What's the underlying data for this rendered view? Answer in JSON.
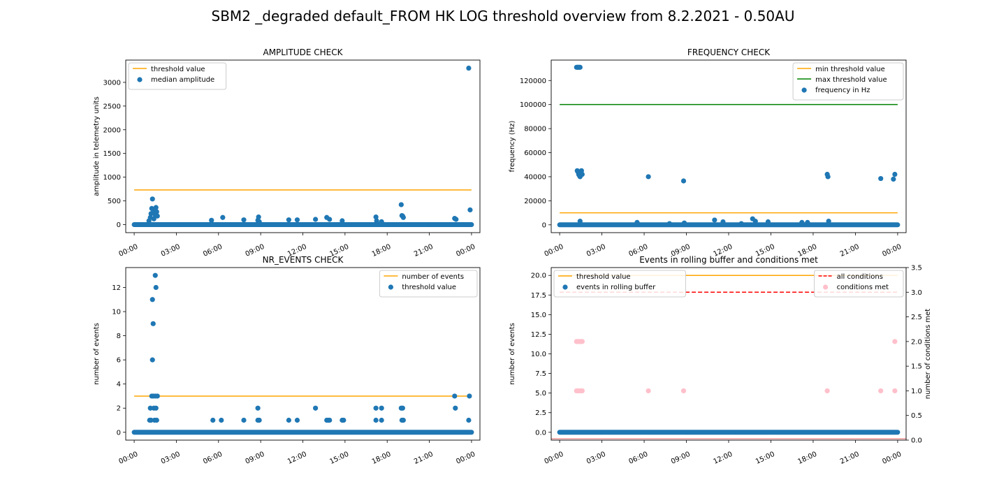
{
  "figure": {
    "title": "SBM2 _degraded default_FROM HK LOG threshold overview from 8.2.2021 - 0.50AU"
  },
  "colors": {
    "blue": "#1f77b4",
    "orange": "#ffa500",
    "green": "#008000",
    "red": "#ff0000",
    "pink": "#ffc0cb"
  },
  "chart_data": [
    {
      "type": "scatter",
      "title": "AMPLITUDE CHECK",
      "xlabel": "",
      "ylabel": "amplitude in telemetry units",
      "xlim": [
        -0.6,
        24.6
      ],
      "ylim": [
        -170,
        3470
      ],
      "xticks": [
        "00:00",
        "03:00",
        "06:00",
        "09:00",
        "12:00",
        "15:00",
        "18:00",
        "21:00",
        "00:00"
      ],
      "yticks": [
        0,
        500,
        1000,
        1500,
        2000,
        2500,
        3000
      ],
      "legend": {
        "position": "upper left",
        "entries": [
          "threshold value",
          "median amplitude"
        ]
      },
      "lines": [
        {
          "name": "threshold value",
          "color": "orange",
          "x": [
            0,
            24
          ],
          "y": [
            730,
            730
          ]
        }
      ],
      "scatter": {
        "name": "median amplitude",
        "color": "blue",
        "baseline": 0,
        "points": [
          [
            1.05,
            80
          ],
          [
            1.15,
            150
          ],
          [
            1.2,
            230
          ],
          [
            1.25,
            340
          ],
          [
            1.3,
            540
          ],
          [
            1.35,
            260
          ],
          [
            1.4,
            120
          ],
          [
            1.45,
            300
          ],
          [
            1.5,
            200
          ],
          [
            1.55,
            360
          ],
          [
            1.6,
            270
          ],
          [
            1.65,
            180
          ],
          [
            5.5,
            90
          ],
          [
            6.3,
            150
          ],
          [
            7.8,
            100
          ],
          [
            8.8,
            90
          ],
          [
            8.85,
            160
          ],
          [
            8.9,
            60
          ],
          [
            11.0,
            100
          ],
          [
            11.6,
            100
          ],
          [
            12.9,
            110
          ],
          [
            13.7,
            150
          ],
          [
            13.9,
            110
          ],
          [
            14.8,
            80
          ],
          [
            17.2,
            160
          ],
          [
            17.25,
            80
          ],
          [
            17.6,
            60
          ],
          [
            19.0,
            420
          ],
          [
            19.05,
            190
          ],
          [
            19.1,
            180
          ],
          [
            19.15,
            150
          ],
          [
            22.8,
            130
          ],
          [
            22.9,
            110
          ],
          [
            23.8,
            3300
          ],
          [
            23.9,
            310
          ]
        ]
      }
    },
    {
      "type": "scatter",
      "title": "FREQUENCY CHECK",
      "xlabel": "",
      "ylabel": "frequency (Hz)",
      "xlim": [
        -0.6,
        24.6
      ],
      "ylim": [
        -6500,
        137000
      ],
      "xticks": [
        "00:00",
        "03:00",
        "06:00",
        "09:00",
        "12:00",
        "15:00",
        "18:00",
        "21:00",
        "00:00"
      ],
      "yticks": [
        0,
        20000,
        40000,
        60000,
        80000,
        100000,
        120000
      ],
      "legend": {
        "position": "upper right",
        "entries": [
          "min threshold value",
          "max threshold value",
          "frequency in Hz"
        ]
      },
      "lines": [
        {
          "name": "min threshold value",
          "color": "orange",
          "x": [
            0,
            24
          ],
          "y": [
            10000,
            10000
          ]
        },
        {
          "name": "max threshold value",
          "color": "green",
          "x": [
            0,
            24
          ],
          "y": [
            100000,
            100000
          ]
        }
      ],
      "scatter": {
        "name": "frequency in Hz",
        "color": "blue",
        "baseline": 0,
        "points": [
          [
            1.2,
            131000
          ],
          [
            1.25,
            131000
          ],
          [
            1.3,
            131000
          ],
          [
            1.35,
            131000
          ],
          [
            1.4,
            131000
          ],
          [
            1.45,
            131000
          ],
          [
            1.25,
            45000
          ],
          [
            1.3,
            44000
          ],
          [
            1.35,
            42000
          ],
          [
            1.4,
            41000
          ],
          [
            1.45,
            40000
          ],
          [
            1.5,
            43000
          ],
          [
            1.55,
            45000
          ],
          [
            1.6,
            42000
          ],
          [
            1.45,
            3000
          ],
          [
            5.5,
            2000
          ],
          [
            6.3,
            40000
          ],
          [
            7.8,
            1000
          ],
          [
            8.8,
            36500
          ],
          [
            8.85,
            1500
          ],
          [
            11.0,
            4000
          ],
          [
            11.6,
            2500
          ],
          [
            12.9,
            1000
          ],
          [
            13.7,
            5000
          ],
          [
            13.9,
            3000
          ],
          [
            14.8,
            2500
          ],
          [
            17.2,
            2000
          ],
          [
            17.6,
            2000
          ],
          [
            19.0,
            42000
          ],
          [
            19.05,
            40000
          ],
          [
            19.1,
            3000
          ],
          [
            22.8,
            38500
          ],
          [
            23.7,
            38000
          ],
          [
            23.8,
            42000
          ]
        ]
      }
    },
    {
      "type": "scatter",
      "title": "NR_EVENTS CHECK",
      "xlabel": "",
      "ylabel": "number of events",
      "xlim": [
        -0.6,
        24.6
      ],
      "ylim": [
        -0.65,
        13.65
      ],
      "xticks": [
        "00:00",
        "03:00",
        "06:00",
        "09:00",
        "12:00",
        "15:00",
        "18:00",
        "21:00",
        "00:00"
      ],
      "yticks": [
        0,
        2,
        4,
        6,
        8,
        10,
        12
      ],
      "legend": {
        "position": "upper right",
        "entries": [
          "number of events",
          "threshold value"
        ]
      },
      "lines": [
        {
          "name": "number of events",
          "color": "orange",
          "x": [
            0,
            24
          ],
          "y": [
            3,
            3
          ]
        }
      ],
      "scatter": {
        "name": "threshold value",
        "color": "blue",
        "baseline": 0,
        "points": [
          [
            1.1,
            1
          ],
          [
            1.15,
            2
          ],
          [
            1.2,
            1
          ],
          [
            1.25,
            3
          ],
          [
            1.3,
            11
          ],
          [
            1.3,
            6
          ],
          [
            1.35,
            9
          ],
          [
            1.35,
            3
          ],
          [
            1.4,
            2
          ],
          [
            1.45,
            1
          ],
          [
            1.5,
            3
          ],
          [
            1.5,
            13
          ],
          [
            1.55,
            12
          ],
          [
            1.55,
            2
          ],
          [
            1.6,
            1
          ],
          [
            1.65,
            3
          ],
          [
            5.6,
            1
          ],
          [
            6.2,
            1
          ],
          [
            7.8,
            1
          ],
          [
            8.8,
            2
          ],
          [
            8.8,
            1
          ],
          [
            8.9,
            1
          ],
          [
            11.0,
            1
          ],
          [
            11.6,
            1
          ],
          [
            12.9,
            2
          ],
          [
            13.7,
            1
          ],
          [
            13.8,
            1
          ],
          [
            13.9,
            1
          ],
          [
            14.8,
            1
          ],
          [
            14.9,
            1
          ],
          [
            17.2,
            2
          ],
          [
            17.2,
            1
          ],
          [
            17.6,
            2
          ],
          [
            17.6,
            1
          ],
          [
            19.0,
            2
          ],
          [
            19.05,
            1
          ],
          [
            19.1,
            2
          ],
          [
            19.15,
            1
          ],
          [
            22.8,
            3
          ],
          [
            22.85,
            2
          ],
          [
            23.8,
            1
          ],
          [
            23.85,
            3
          ]
        ]
      }
    },
    {
      "type": "scatter",
      "title": "Events in rolling buffer and conditions met",
      "xlabel": "",
      "ylabel": "number of events",
      "ylabel_right": "number of conditions met",
      "xlim": [
        -0.6,
        24.6
      ],
      "ylim": [
        -1.0,
        21.0
      ],
      "ylim_right": [
        0,
        3.5
      ],
      "xticks": [
        "00:00",
        "03:00",
        "06:00",
        "09:00",
        "12:00",
        "15:00",
        "18:00",
        "21:00",
        "00:00"
      ],
      "yticks": [
        "0.0",
        "2.5",
        "5.0",
        "7.5",
        "10.0",
        "12.5",
        "15.0",
        "17.5",
        "20.0"
      ],
      "yticks_right": [
        "0.0",
        "0.5",
        "1.0",
        "1.5",
        "2.0",
        "2.5",
        "3.0",
        "3.5"
      ],
      "legend": {
        "position": "upper left",
        "entries": [
          "threshold value",
          "events in rolling buffer"
        ]
      },
      "legend_right": {
        "position": "upper right",
        "entries": [
          "all conditions",
          "conditions met"
        ]
      },
      "lines": [
        {
          "name": "threshold value",
          "color": "orange",
          "x": [
            0,
            24
          ],
          "y": [
            20,
            20
          ]
        }
      ],
      "lines_right": [
        {
          "name": "all conditions",
          "color": "red",
          "dashed": true,
          "x": [
            0,
            24
          ],
          "y": [
            3,
            3
          ]
        }
      ],
      "scatter": {
        "name": "events in rolling buffer",
        "color": "blue",
        "baseline": 0,
        "points": []
      },
      "scatter_right": {
        "name": "conditions met",
        "color": "pink",
        "baseline": 0,
        "points": [
          [
            1.2,
            2
          ],
          [
            1.3,
            2
          ],
          [
            1.4,
            2
          ],
          [
            1.5,
            2
          ],
          [
            1.6,
            2
          ],
          [
            1.2,
            1
          ],
          [
            1.3,
            1
          ],
          [
            1.4,
            1
          ],
          [
            1.5,
            1
          ],
          [
            1.6,
            1
          ],
          [
            6.3,
            1
          ],
          [
            8.8,
            1
          ],
          [
            19.0,
            1
          ],
          [
            22.8,
            1
          ],
          [
            23.8,
            1
          ],
          [
            23.8,
            2
          ]
        ]
      }
    }
  ]
}
